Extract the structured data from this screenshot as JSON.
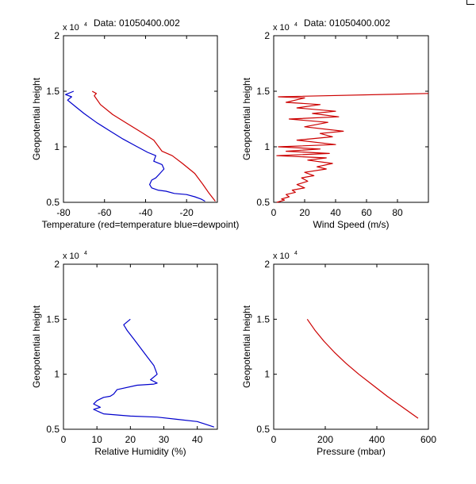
{
  "chart_data": [
    {
      "type": "line",
      "title": "Data: 01050400.002",
      "exponent_label": "x 10",
      "exponent_power": "4",
      "xlabel": "Temperature (red=temperature blue=dewpoint)",
      "ylabel": "Geopotential height",
      "xlim": [
        -80,
        -5
      ],
      "ylim": [
        0.5,
        2
      ],
      "xticks": [
        -80,
        -60,
        -40,
        -20
      ],
      "xtick_labels": [
        "-80",
        "-60",
        "-40",
        "-20"
      ],
      "yticks": [
        0.5,
        1,
        1.5,
        2
      ],
      "ytick_labels": [
        "0.5",
        "1",
        "1.5",
        "2"
      ],
      "series": [
        {
          "name": "temperature",
          "color": "#cc0000",
          "x": [
            -66,
            -64,
            -65,
            -62,
            -56,
            -49,
            -42,
            -36,
            -32,
            -27,
            -22,
            -16,
            -12,
            -9,
            -6
          ],
          "y": [
            1.5,
            1.48,
            1.46,
            1.38,
            1.29,
            1.21,
            1.13,
            1.06,
            0.96,
            0.92,
            0.85,
            0.76,
            0.66,
            0.58,
            0.51
          ]
        },
        {
          "name": "dewpoint",
          "color": "#0000cc",
          "x": [
            -75,
            -79,
            -76,
            -78,
            -74,
            -70,
            -64,
            -58,
            -51,
            -45,
            -39,
            -35,
            -36,
            -32,
            -31,
            -33,
            -35,
            -37,
            -38,
            -37,
            -34,
            -30,
            -26,
            -20,
            -16,
            -13,
            -11
          ],
          "y": [
            1.5,
            1.47,
            1.45,
            1.42,
            1.36,
            1.3,
            1.22,
            1.15,
            1.07,
            1.01,
            0.95,
            0.92,
            0.87,
            0.84,
            0.8,
            0.76,
            0.72,
            0.7,
            0.66,
            0.63,
            0.61,
            0.6,
            0.58,
            0.57,
            0.55,
            0.53,
            0.51
          ]
        }
      ]
    },
    {
      "type": "line",
      "title": "Data: 01050400.002",
      "exponent_label": "x 10",
      "exponent_power": "4",
      "xlabel": "Wind Speed (m/s)",
      "ylabel": "Geopotential height",
      "xlim": [
        0,
        100
      ],
      "ylim": [
        0.5,
        2
      ],
      "xticks": [
        0,
        20,
        40,
        60,
        80
      ],
      "xtick_labels": [
        "0",
        "20",
        "40",
        "60",
        "80"
      ],
      "yticks": [
        0.5,
        1,
        1.5,
        2
      ],
      "ytick_labels": [
        "0.5",
        "1",
        "1.5",
        "2"
      ],
      "series": [
        {
          "name": "wind speed",
          "color": "#cc0000",
          "x": [
            100,
            3,
            20,
            8,
            30,
            15,
            40,
            25,
            42,
            10,
            35,
            20,
            45,
            30,
            38,
            15,
            40,
            3,
            30,
            8,
            36,
            2,
            34,
            22,
            38,
            28,
            34,
            20,
            26,
            18,
            22,
            15,
            20,
            12,
            14,
            8,
            10,
            5,
            7,
            2
          ],
          "y": [
            1.48,
            1.45,
            1.44,
            1.4,
            1.38,
            1.35,
            1.32,
            1.3,
            1.27,
            1.25,
            1.22,
            1.18,
            1.14,
            1.12,
            1.09,
            1.06,
            1.02,
            1.0,
            0.98,
            0.96,
            0.94,
            0.92,
            0.9,
            0.88,
            0.85,
            0.82,
            0.8,
            0.77,
            0.74,
            0.72,
            0.69,
            0.66,
            0.63,
            0.61,
            0.59,
            0.57,
            0.55,
            0.53,
            0.52,
            0.5
          ]
        }
      ]
    },
    {
      "type": "line",
      "title": "",
      "exponent_label": "x 10",
      "exponent_power": "4",
      "xlabel": "Relative Humidity (%)",
      "ylabel": "Geopotential height",
      "xlim": [
        0,
        46
      ],
      "ylim": [
        0.5,
        2
      ],
      "xticks": [
        0,
        10,
        20,
        30,
        40
      ],
      "xtick_labels": [
        "0",
        "10",
        "20",
        "30",
        "40"
      ],
      "yticks": [
        0.5,
        1,
        1.5,
        2
      ],
      "ytick_labels": [
        "0.5",
        "1",
        "1.5",
        "2"
      ],
      "series": [
        {
          "name": "relative humidity",
          "color": "#0000cc",
          "x": [
            20,
            18,
            19,
            21,
            23,
            25,
            27,
            28,
            26,
            28,
            27,
            22,
            16,
            15,
            14,
            12,
            10,
            9,
            11,
            9,
            12,
            20,
            28,
            34,
            40,
            45
          ],
          "y": [
            1.5,
            1.45,
            1.4,
            1.32,
            1.24,
            1.16,
            1.08,
            1.0,
            0.95,
            0.92,
            0.91,
            0.9,
            0.86,
            0.82,
            0.8,
            0.79,
            0.76,
            0.73,
            0.7,
            0.68,
            0.64,
            0.62,
            0.61,
            0.59,
            0.57,
            0.52
          ]
        }
      ]
    },
    {
      "type": "line",
      "title": "",
      "exponent_label": "x 10",
      "exponent_power": "4",
      "xlabel": "Pressure (mbar)",
      "ylabel": "Geopotential height",
      "xlim": [
        0,
        600
      ],
      "ylim": [
        0.5,
        2
      ],
      "xticks": [
        0,
        200,
        400,
        600
      ],
      "xtick_labels": [
        "0",
        "200",
        "400",
        "600"
      ],
      "yticks": [
        0.5,
        1,
        1.5,
        2
      ],
      "ytick_labels": [
        "0.5",
        "1",
        "1.5",
        "2"
      ],
      "series": [
        {
          "name": "pressure",
          "color": "#cc0000",
          "x": [
            130,
            160,
            195,
            235,
            280,
            330,
            385,
            440,
            500,
            560
          ],
          "y": [
            1.5,
            1.4,
            1.3,
            1.2,
            1.1,
            1.0,
            0.9,
            0.8,
            0.7,
            0.6
          ]
        }
      ]
    }
  ]
}
